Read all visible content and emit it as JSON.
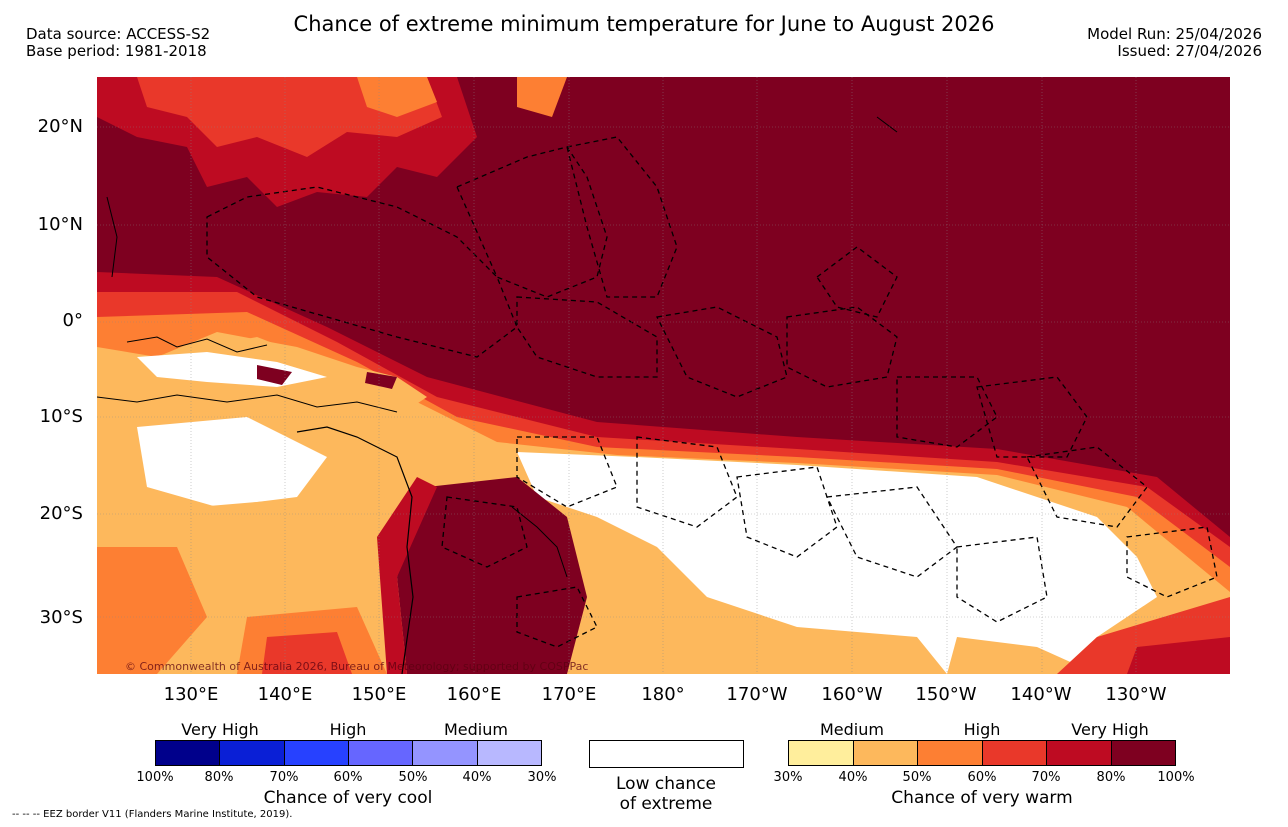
{
  "title": "Chance of extreme minimum temperature for June to August 2026",
  "data_source": "Data source: ACCESS-S2",
  "base_period": "Base period: 1981-2018",
  "model_run": "Model Run: 25/04/2026",
  "issued": "Issued: 27/04/2026",
  "lat_labels": [
    "20°N",
    "10°N",
    "0°",
    "10°S",
    "20°S",
    "30°S"
  ],
  "lon_labels": [
    "130°E",
    "140°E",
    "150°E",
    "160°E",
    "170°E",
    "180°",
    "170°W",
    "160°W",
    "150°W",
    "140°W",
    "130°W"
  ],
  "copyright": "© Commonwealth of Australia 2026, Bureau of Meteorology; supported by COSPPac",
  "legend_cool": {
    "categories": [
      "Very High",
      "High",
      "Medium"
    ],
    "colors": [
      "#00008b",
      "#0a1fd6",
      "#2741ff",
      "#6666ff",
      "#9494ff",
      "#b8b8ff"
    ],
    "ticks": [
      "100%",
      "80%",
      "70%",
      "60%",
      "50%",
      "40%",
      "30%"
    ],
    "caption": "Chance of very cool"
  },
  "legend_low": {
    "caption_line1": "Low chance",
    "caption_line2": "of extreme"
  },
  "legend_warm": {
    "categories": [
      "Medium",
      "High",
      "Very High"
    ],
    "colors": [
      "#ffee9c",
      "#fdb85c",
      "#fd7f33",
      "#e9382a",
      "#be0b22",
      "#7e0020"
    ],
    "ticks": [
      "30%",
      "40%",
      "50%",
      "60%",
      "70%",
      "80%",
      "100%"
    ],
    "caption": "Chance of very warm"
  },
  "eez_note": "--  --  -- EEZ border V11 (Flanders Marine Institute, 2019)."
}
